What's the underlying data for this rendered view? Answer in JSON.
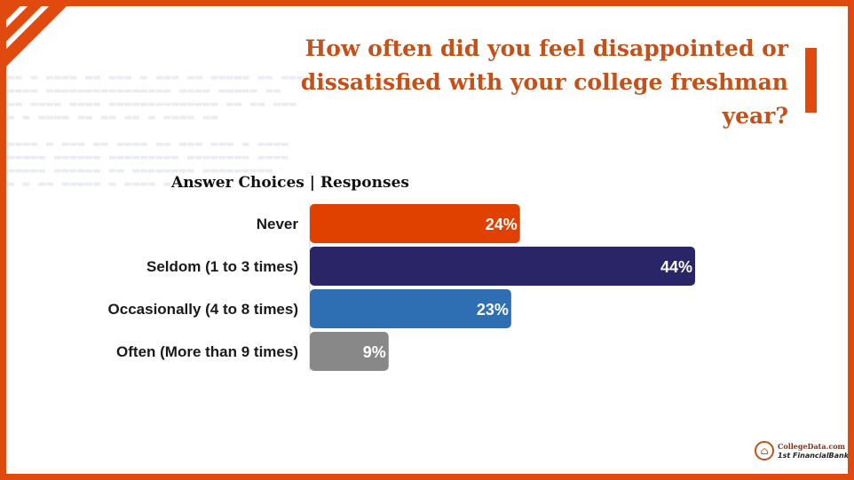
{
  "header": {
    "title": "How often did you feel disappointed or dissatisfied with your college freshman year?",
    "table_header": "Answer Choices | Responses"
  },
  "colors": {
    "frame": "#e04a0f",
    "title": "#c4501a"
  },
  "chart_data": {
    "type": "bar",
    "orientation": "horizontal",
    "title": "How often did you feel disappointed or dissatisfied with your college freshman year?",
    "xlabel": "Responses",
    "ylabel": "Answer Choices",
    "xlim": [
      0,
      44
    ],
    "categories": [
      "Never",
      "Seldom (1 to 3 times)",
      "Occasionally (4 to 8 times)",
      "Often (More than 9 times)"
    ],
    "values": [
      24,
      44,
      23,
      9
    ],
    "value_labels": [
      "24%",
      "44%",
      "23%",
      "9%"
    ],
    "colors": [
      "#e04000",
      "#2a2567",
      "#2e6fb4",
      "#888888"
    ]
  },
  "logo": {
    "line1": "CollegeData.com",
    "line2": "1st FinancialBank"
  }
}
